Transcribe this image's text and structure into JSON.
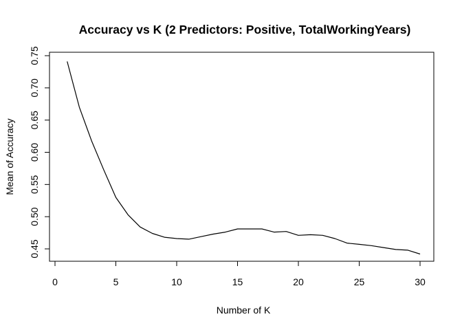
{
  "chart_data": {
    "type": "line",
    "title": "Accuracy vs K (2 Predictors: Positive, TotalWorkingYears)",
    "xlabel": "Number of K",
    "ylabel": "Mean of Accuracy",
    "xlim": [
      0,
      30
    ],
    "ylim": [
      0.45,
      0.75
    ],
    "xticks": [
      "0",
      "5",
      "10",
      "15",
      "20",
      "25",
      "30"
    ],
    "yticks": [
      "0.45",
      "0.50",
      "0.55",
      "0.60",
      "0.65",
      "0.70",
      "0.75"
    ],
    "grid": false,
    "legend": "none",
    "line_color": "#000000",
    "x": [
      1,
      2,
      3,
      4,
      5,
      6,
      7,
      8,
      9,
      10,
      11,
      12,
      13,
      14,
      15,
      16,
      17,
      18,
      19,
      20,
      21,
      22,
      23,
      24,
      25,
      26,
      27,
      28,
      29,
      30
    ],
    "values": [
      0.741,
      0.67,
      0.618,
      0.573,
      0.53,
      0.503,
      0.484,
      0.474,
      0.468,
      0.466,
      0.465,
      0.469,
      0.473,
      0.476,
      0.481,
      0.481,
      0.481,
      0.476,
      0.477,
      0.471,
      0.472,
      0.471,
      0.466,
      0.459,
      0.457,
      0.455,
      0.452,
      0.449,
      0.448,
      0.442
    ]
  }
}
